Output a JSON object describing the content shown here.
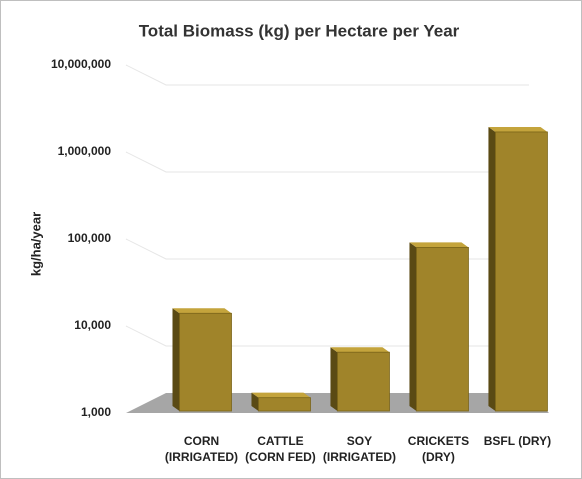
{
  "chart_data": {
    "type": "bar",
    "title": "Total Biomass (kg) per Hectare per Year",
    "y_label": "kg/ha/year",
    "categories": [
      "CORN (IRRIGATED)",
      "CATTLE (CORN FED)",
      "SOY (IRRIGATED)",
      "CRICKETS (DRY)",
      "BSFL (DRY)"
    ],
    "values": [
      14000,
      1500,
      5000,
      80000,
      1700000
    ],
    "color": "#a0842a",
    "log_scale": true,
    "ylim": [
      1000,
      10000000
    ],
    "yticks": [
      {
        "value": 1000,
        "label": "1,000"
      },
      {
        "value": 10000,
        "label": "10,000"
      },
      {
        "value": 100000,
        "label": "100,000"
      },
      {
        "value": 1000000,
        "label": "1,000,000"
      },
      {
        "value": 10000000,
        "label": "10,000,000"
      }
    ],
    "grid": true
  }
}
